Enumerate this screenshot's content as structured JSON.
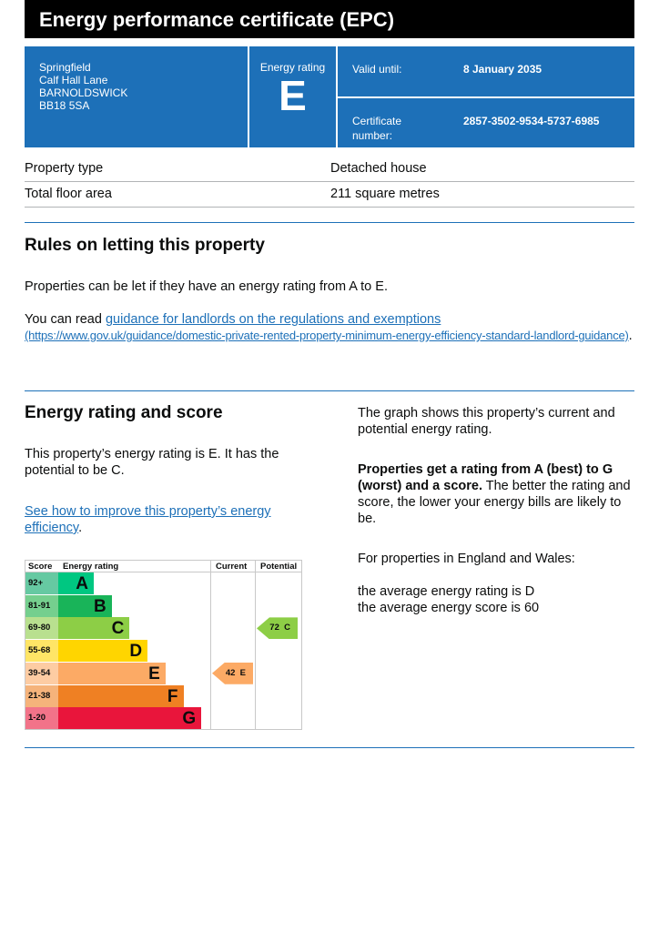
{
  "header": {
    "title": "Energy performance certificate (EPC)"
  },
  "address": [
    "Springfield",
    "Calf Hall Lane",
    "BARNOLDSWICK",
    "BB18 5SA"
  ],
  "rating": {
    "label": "Energy rating",
    "value": "E"
  },
  "valid": {
    "label": "Valid until:",
    "value": "8 January 2035"
  },
  "certificate": {
    "label1": "Certificate",
    "label2": "number:",
    "value": "2857-3502-9534-5737-6985"
  },
  "property": [
    {
      "label": "Property type",
      "value": "Detached house"
    },
    {
      "label": "Total floor area",
      "value": "211 square metres"
    }
  ],
  "letting": {
    "heading": "Rules on letting this property",
    "p1": "Properties can be let if they have an energy rating from A to E.",
    "p2_prefix": "You can read ",
    "link": "guidance for landlords on the regulations and exemptions",
    "url": "(https://www.gov.uk/guidance/domestic-private-rented-property-minimum-energy-efficiency-standard-landlord-guidance)",
    "p2_suffix": "."
  },
  "energy": {
    "heading": "Energy rating and score",
    "p1": "This property’s energy rating is E. It has the potential to be C.",
    "link": "See how to improve this property’s energy efficiency",
    "link_suffix": ".",
    "r1": "The graph shows this property’s current and potential energy rating.",
    "r2_bold": "Properties get a rating from A (best) to G (worst) and a score.",
    "r2": " The better the rating and score, the lower your energy bills are likely to be.",
    "r3": "For properties in England and Wales:",
    "r4": "the average energy rating is D",
    "r5": "the average energy score is 60"
  },
  "chart_data": {
    "type": "table",
    "headers": [
      "Score",
      "Energy rating",
      "Current",
      "Potential"
    ],
    "bands": [
      {
        "letter": "A",
        "score": "92+",
        "color": "#00c781",
        "light": "#66c9a2"
      },
      {
        "letter": "B",
        "score": "81-91",
        "color": "#19b459",
        "light": "#75cf8e"
      },
      {
        "letter": "C",
        "score": "69-80",
        "color": "#8dce46",
        "light": "#b9e08f"
      },
      {
        "letter": "D",
        "score": "55-68",
        "color": "#ffd500",
        "light": "#ffe566"
      },
      {
        "letter": "E",
        "score": "39-54",
        "color": "#fcaa65",
        "light": "#fdcca3"
      },
      {
        "letter": "F",
        "score": "21-38",
        "color": "#ef8023",
        "light": "#f5b37b"
      },
      {
        "letter": "G",
        "score": "1-20",
        "color": "#e9153b",
        "light": "#f27389"
      }
    ],
    "current": {
      "score": 42,
      "letter": "E",
      "label": "42  E"
    },
    "potential": {
      "score": 72,
      "letter": "C",
      "label": "72  C"
    }
  }
}
